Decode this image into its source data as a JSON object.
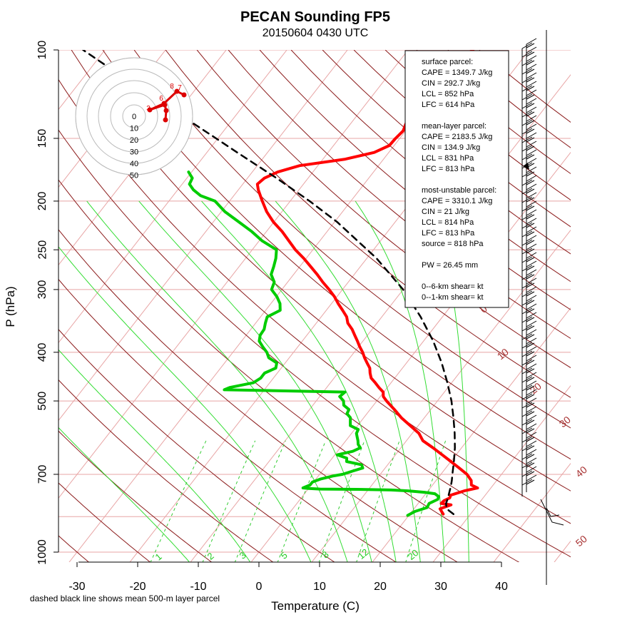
{
  "colors": {
    "temperature": "#ff0000",
    "dewpoint": "#00cc00",
    "parcel": "#000000",
    "isotherm": "#e8a5a5",
    "isobar": "#e8a5a5",
    "dry_adiabat": "#8b1a1a",
    "moist_adiabat": "#33dd33",
    "mixing_ratio": "#33cc33"
  },
  "chart_data": {
    "type": "skew-t",
    "title": "PECAN Sounding FP5",
    "subtitle": "20150604 0430 UTC",
    "xlabel": "Temperature (C)",
    "ylabel": "P (hPa)",
    "xlim": [
      -35,
      45
    ],
    "ylim": [
      1050,
      100
    ],
    "x_ticks": [
      "-30",
      "-20",
      "-10",
      "0",
      "10",
      "20",
      "30",
      "40"
    ],
    "y_ticks": [
      "100",
      "150",
      "200",
      "250",
      "300",
      "400",
      "500",
      "700",
      "1000"
    ],
    "isotherm_labels": [
      "0",
      "10",
      "20",
      "30",
      "40",
      "50"
    ],
    "mixing_ratio_labels": [
      "1",
      "2",
      "3",
      "5",
      "8",
      "12",
      "20"
    ],
    "note": "dashed black line shows mean 500-m layer parcel",
    "info_box": [
      "surface parcel:",
      "CAPE = 1349.7 J/kg",
      "CIN = 292.7 J/kg",
      "LCL = 852 hPa",
      "LFC = 614 hPa",
      "",
      "mean-layer parcel:",
      "CAPE = 2183.5 J/kg",
      "CIN = 134.9 J/kg",
      "LCL = 831 hPa",
      "LFC = 813 hPa",
      "",
      "most-unstable parcel:",
      "CAPE = 3310.1 J/kg",
      "CIN = 21 J/kg",
      "LCL = 814 hPa",
      "LFC = 813 hPa",
      "source = 818 hPa",
      "",
      "PW =  26.45 mm",
      "",
      "0--6-km shear=  kt",
      "0--1-km shear=  kt"
    ],
    "hodograph": {
      "ring_labels": [
        "0",
        "10",
        "20",
        "30",
        "40",
        "50"
      ],
      "point_labels": [
        "8",
        "7",
        "6",
        "3"
      ]
    },
    "series": [
      {
        "name": "temperature",
        "points": [
          [
            840,
            25.5
          ],
          [
            820,
            24.3
          ],
          [
            805,
            25.6
          ],
          [
            800,
            23.8
          ],
          [
            790,
            23.9
          ],
          [
            780,
            24.5
          ],
          [
            770,
            24.3
          ],
          [
            755,
            26.0
          ],
          [
            745,
            27.8
          ],
          [
            735,
            26.4
          ],
          [
            720,
            25.8
          ],
          [
            700,
            24.3
          ],
          [
            680,
            22.2
          ],
          [
            660,
            20.0
          ],
          [
            640,
            17.7
          ],
          [
            620,
            15.3
          ],
          [
            600,
            12.7
          ],
          [
            580,
            11.1
          ],
          [
            560,
            8.7
          ],
          [
            540,
            6.2
          ],
          [
            520,
            4.0
          ],
          [
            500,
            1.6
          ],
          [
            490,
            0.5
          ],
          [
            480,
            -0.1
          ],
          [
            470,
            -1.4
          ],
          [
            460,
            -2.6
          ],
          [
            450,
            -3.9
          ],
          [
            440,
            -4.7
          ],
          [
            430,
            -5.4
          ],
          [
            420,
            -6.5
          ],
          [
            410,
            -7.6
          ],
          [
            400,
            -8.6
          ],
          [
            390,
            -9.8
          ],
          [
            380,
            -10.9
          ],
          [
            370,
            -12.1
          ],
          [
            360,
            -13.3
          ],
          [
            350,
            -14.8
          ],
          [
            340,
            -15.8
          ],
          [
            330,
            -17.3
          ],
          [
            320,
            -18.9
          ],
          [
            310,
            -20.4
          ],
          [
            300,
            -22.2
          ],
          [
            290,
            -24.2
          ],
          [
            280,
            -26.1
          ],
          [
            270,
            -28.2
          ],
          [
            260,
            -30.4
          ],
          [
            250,
            -32.9
          ],
          [
            240,
            -35.1
          ],
          [
            230,
            -37.4
          ],
          [
            220,
            -40.1
          ],
          [
            210,
            -42.5
          ],
          [
            200,
            -44.6
          ],
          [
            190,
            -46.7
          ],
          [
            185,
            -47.6
          ],
          [
            180,
            -47.2
          ],
          [
            175,
            -45.8
          ],
          [
            170,
            -43.0
          ],
          [
            165,
            -36.3
          ],
          [
            160,
            -32.4
          ],
          [
            155,
            -30.8
          ],
          [
            150,
            -30.7
          ],
          [
            145,
            -30.4
          ],
          [
            140,
            -30.9
          ],
          [
            135,
            -31.2
          ],
          [
            130,
            -30.8
          ],
          [
            125,
            -31.0
          ],
          [
            120,
            -31.2
          ],
          [
            115,
            -30.6
          ],
          [
            110,
            -31.2
          ],
          [
            105,
            -30.8
          ],
          [
            100,
            -29.3
          ]
        ]
      },
      {
        "name": "dewpoint",
        "points": [
          [
            845,
            19.8
          ],
          [
            830,
            20.5
          ],
          [
            815,
            22.0
          ],
          [
            800,
            21.8
          ],
          [
            785,
            22.7
          ],
          [
            775,
            22.5
          ],
          [
            765,
            21.5
          ],
          [
            760,
            19.6
          ],
          [
            755,
            16.7
          ],
          [
            752,
            13.8
          ],
          [
            750,
            8.0
          ],
          [
            749,
            2.0
          ],
          [
            747,
            0.0
          ],
          [
            745,
            -1.0
          ],
          [
            735,
            -0.2
          ],
          [
            725,
            -0.2
          ],
          [
            715,
            0.8
          ],
          [
            705,
            2.5
          ],
          [
            700,
            3.8
          ],
          [
            690,
            5.0
          ],
          [
            680,
            6.3
          ],
          [
            670,
            5.7
          ],
          [
            660,
            2.8
          ],
          [
            650,
            2.4
          ],
          [
            640,
            0.4
          ],
          [
            630,
            2.5
          ],
          [
            620,
            3.3
          ],
          [
            610,
            2.5
          ],
          [
            600,
            2.0
          ],
          [
            590,
            1.4
          ],
          [
            580,
            0.8
          ],
          [
            570,
            0.6
          ],
          [
            560,
            -1.2
          ],
          [
            550,
            -1.7
          ],
          [
            540,
            -2.2
          ],
          [
            530,
            -3.3
          ],
          [
            520,
            -3.5
          ],
          [
            510,
            -4.9
          ],
          [
            500,
            -5.5
          ],
          [
            490,
            -6.7
          ],
          [
            480,
            -6.4
          ],
          [
            475,
            -26.6
          ],
          [
            470,
            -26.0
          ],
          [
            460,
            -22.7
          ],
          [
            450,
            -22.1
          ],
          [
            440,
            -22.1
          ],
          [
            430,
            -20.9
          ],
          [
            420,
            -21.4
          ],
          [
            410,
            -23.4
          ],
          [
            400,
            -24.4
          ],
          [
            390,
            -25.8
          ],
          [
            380,
            -27.1
          ],
          [
            370,
            -27.7
          ],
          [
            360,
            -27.8
          ],
          [
            350,
            -28.4
          ],
          [
            340,
            -28.9
          ],
          [
            330,
            -27.6
          ],
          [
            320,
            -28.5
          ],
          [
            310,
            -29.9
          ],
          [
            300,
            -31.7
          ],
          [
            290,
            -32.2
          ],
          [
            280,
            -33.7
          ],
          [
            270,
            -34.3
          ],
          [
            260,
            -35.0
          ],
          [
            250,
            -36.0
          ],
          [
            240,
            -39.5
          ],
          [
            230,
            -42.4
          ],
          [
            220,
            -45.8
          ],
          [
            210,
            -49.4
          ],
          [
            200,
            -52.4
          ],
          [
            195,
            -55.5
          ],
          [
            190,
            -57.4
          ],
          [
            185,
            -58.8
          ],
          [
            180,
            -59.1
          ],
          [
            175,
            -60.5
          ]
        ]
      },
      {
        "name": "parcel",
        "points": [
          [
            840,
            27.2
          ],
          [
            820,
            25.4
          ],
          [
            800,
            24.6
          ],
          [
            780,
            24.2
          ],
          [
            760,
            23.7
          ],
          [
            740,
            23.2
          ],
          [
            720,
            22.6
          ],
          [
            700,
            21.9
          ],
          [
            660,
            20.5
          ],
          [
            620,
            18.9
          ],
          [
            580,
            17.0
          ],
          [
            540,
            14.8
          ],
          [
            500,
            12.3
          ],
          [
            460,
            9.3
          ],
          [
            420,
            5.8
          ],
          [
            380,
            1.6
          ],
          [
            340,
            -3.6
          ],
          [
            300,
            -10.0
          ],
          [
            260,
            -18.4
          ],
          [
            220,
            -29.6
          ],
          [
            200,
            -36.8
          ],
          [
            180,
            -45.2
          ],
          [
            160,
            -55.0
          ],
          [
            150,
            -60.3
          ],
          [
            140,
            -66.0
          ],
          [
            130,
            -72.1
          ],
          [
            120,
            -78.7
          ],
          [
            110,
            -85.9
          ],
          [
            100,
            -93.6
          ]
        ]
      }
    ]
  }
}
